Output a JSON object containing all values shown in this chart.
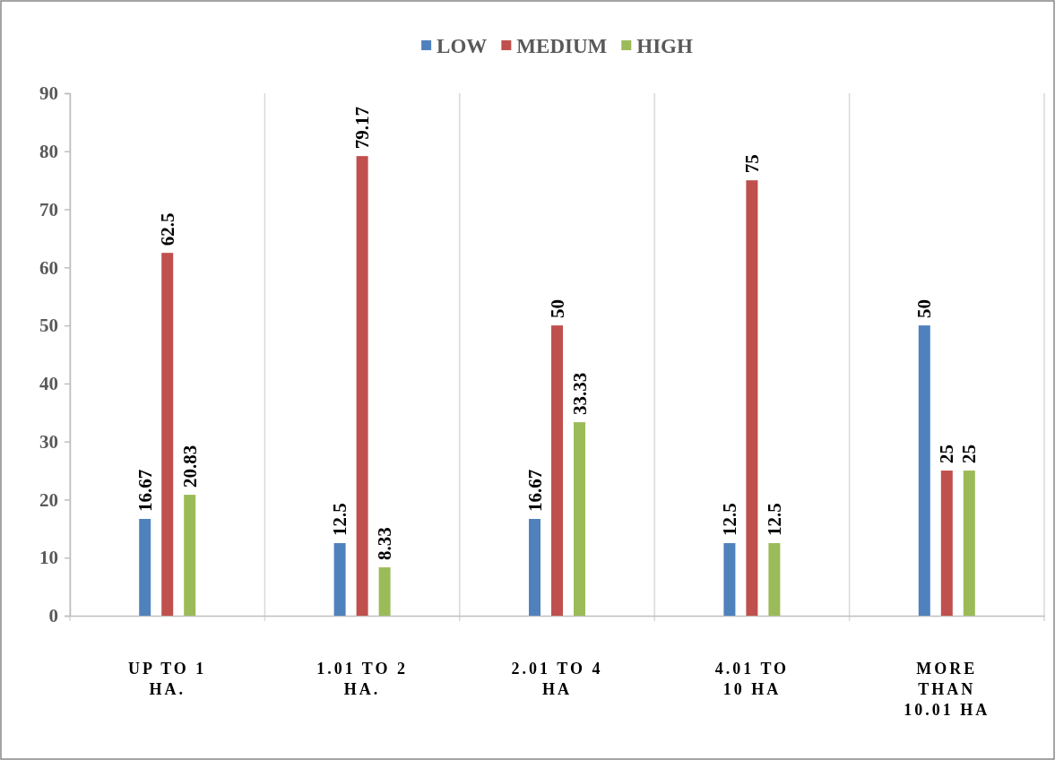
{
  "chart_data": {
    "type": "bar",
    "categories": [
      "UP TO 1 HA.",
      "1.01 TO 2 HA.",
      "2.01 TO 4 HA",
      "4.01 TO 10 HA",
      "MORE THAN 10.01 HA"
    ],
    "series": [
      {
        "name": "LOW",
        "color": "#4f81bd",
        "values": [
          16.67,
          12.5,
          16.67,
          12.5,
          50
        ]
      },
      {
        "name": "MEDIUM",
        "color": "#c0504d",
        "values": [
          62.5,
          79.17,
          50,
          75,
          25
        ]
      },
      {
        "name": "HIGH",
        "color": "#9bbb59",
        "values": [
          20.83,
          8.33,
          33.33,
          12.5,
          25
        ]
      }
    ],
    "ylim": [
      0,
      90
    ],
    "yticks": [
      0,
      10,
      20,
      30,
      40,
      50,
      60,
      70,
      80,
      90
    ],
    "grid": "x",
    "legend": "top",
    "data_labels": true
  }
}
